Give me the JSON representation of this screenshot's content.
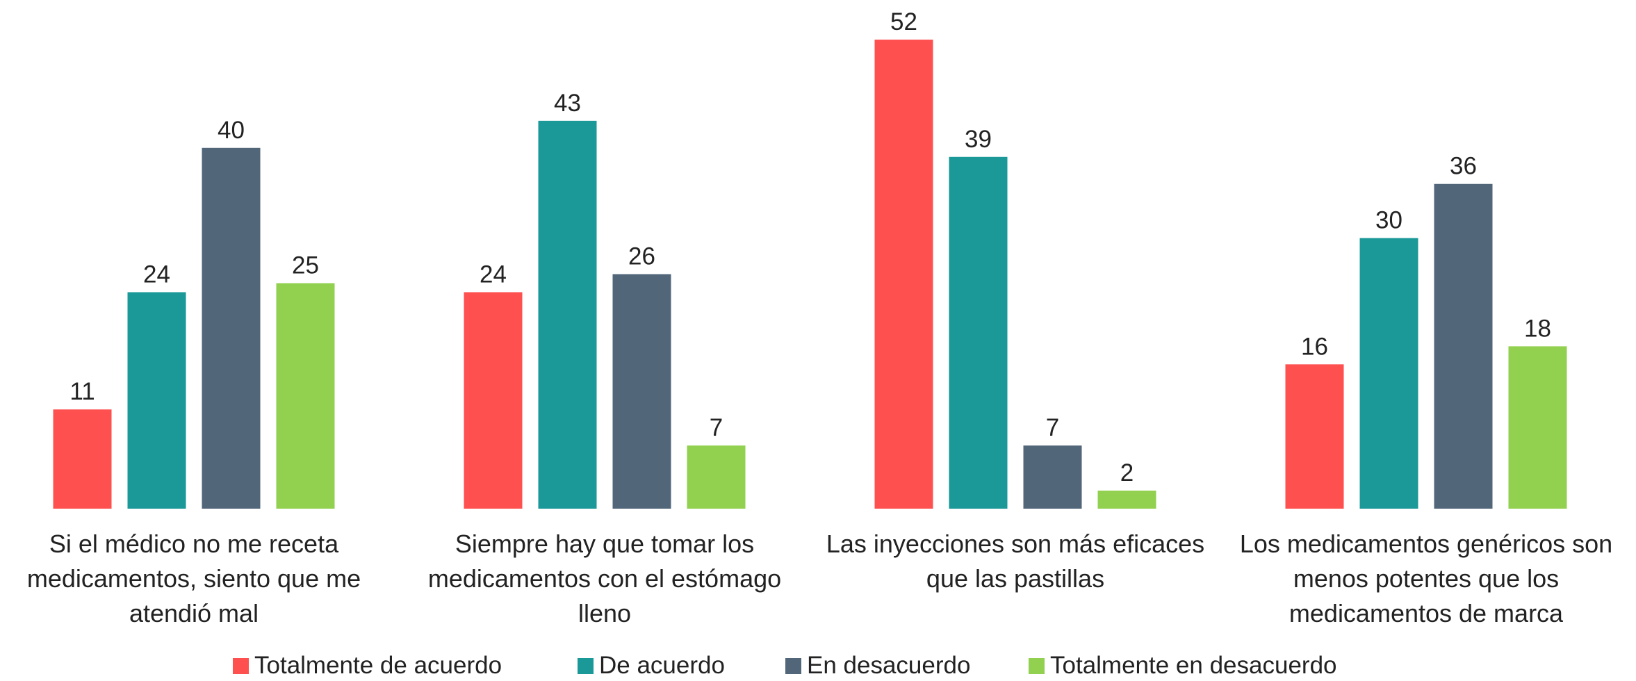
{
  "chart_data": {
    "type": "bar",
    "categories": [
      "Si el médico no me receta medicamentos, siento que me atendió mal",
      "Siempre hay que tomar los medicamentos con el estómago lleno",
      "Las inyecciones son más eficaces que las pastillas",
      "Los medicamentos genéricos son menos potentes que los medicamentos de marca"
    ],
    "series": [
      {
        "name": "Totalmente de acuerdo",
        "color": "#ff5050",
        "values": [
          11,
          24,
          52,
          16
        ]
      },
      {
        "name": "De acuerdo",
        "color": "#1b9898",
        "values": [
          24,
          43,
          39,
          30
        ]
      },
      {
        "name": "En desacuerdo",
        "color": "#52667a",
        "values": [
          40,
          26,
          7,
          36
        ]
      },
      {
        "name": "Totalmente en desacuerdo",
        "color": "#92d050",
        "values": [
          25,
          7,
          2,
          18
        ]
      }
    ],
    "legend": "bottom"
  }
}
